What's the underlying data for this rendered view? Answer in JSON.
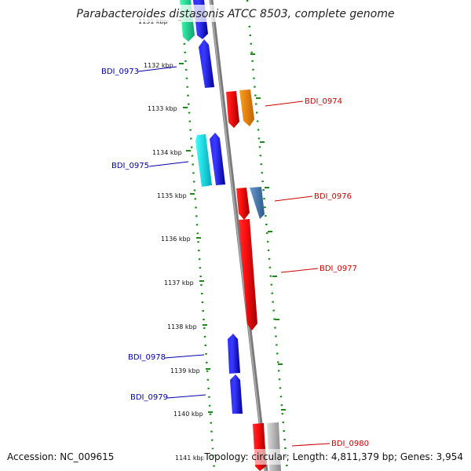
{
  "title": "Parabacteroides distasonis ATCC 8503, complete genome",
  "footer": {
    "accession": "Accession: NC_009615",
    "topology": "Topology: circular; Length: 4,811,379 bp; Genes: 3,954"
  },
  "ticks": [
    "1131 kbp",
    "1132 kbp",
    "1133 kbp",
    "1134 kbp",
    "1135 kbp",
    "1136 kbp",
    "1137 kbp",
    "1138 kbp",
    "1139 kbp",
    "1140 kbp",
    "1141 kbp"
  ],
  "gene_labels": [
    {
      "name": "BDI_0973",
      "strand": "minus",
      "color": "#0000aa"
    },
    {
      "name": "BDI_0974",
      "strand": "plus",
      "color": "#cc0000"
    },
    {
      "name": "BDI_0975",
      "strand": "minus",
      "color": "#0000aa"
    },
    {
      "name": "BDI_0976",
      "strand": "plus",
      "color": "#cc0000"
    },
    {
      "name": "BDI_0977",
      "strand": "plus",
      "color": "#cc0000"
    },
    {
      "name": "BDI_0978",
      "strand": "minus",
      "color": "#0000aa"
    },
    {
      "name": "BDI_0979",
      "strand": "minus",
      "color": "#0000aa"
    },
    {
      "name": "BDI_0980",
      "strand": "plus",
      "color": "#cc0000"
    }
  ],
  "colors": {
    "backbone": "#888888",
    "tick_dots": "#1a8a1a",
    "minus_gene": "#0000ee",
    "plus_gene": "#ee0000"
  }
}
